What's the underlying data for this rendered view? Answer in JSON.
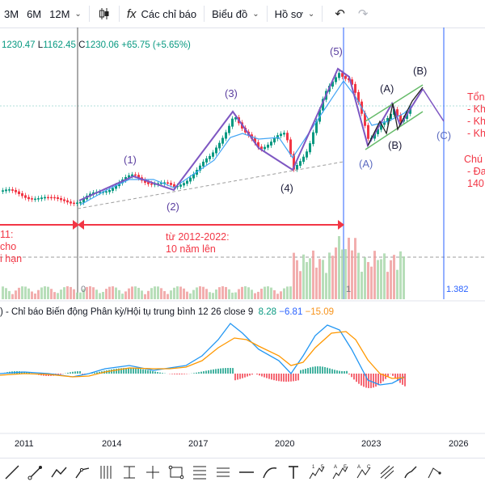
{
  "toolbar": {
    "ranges": [
      "3M",
      "6M",
      "12M"
    ],
    "indicators_label": "Các chỉ báo",
    "indicators_glyph": "fx",
    "chart_type_label": "Biểu đồ",
    "template_label": "Hồ sơ"
  },
  "ohlc": {
    "h_value": "1230.47",
    "l_label": "L",
    "l_value": "1162.45",
    "c_label": "C",
    "c_value": "1230.06",
    "change": "+65.75 (+5.65%)"
  },
  "waves": {
    "w1": "(1)",
    "w2": "(2)",
    "w3": "(3)",
    "w4": "(4)",
    "w5": "(5)",
    "a1": "(A)",
    "a2": "(A)",
    "b1": "(B)",
    "b2": "(B)",
    "c1": "(C)"
  },
  "annotations": {
    "left_note": "11:\ncho\ni hạn",
    "middle_note": "từ 2012-2022:\n10 năm lên",
    "right_title": "Tổn",
    "right_items": "- Kh\n- Kh\n- Kh",
    "right_title2": "Chú",
    "right_items2": "- Đa\n140"
  },
  "markers": {
    "zero": "0",
    "one": "1",
    "price_tag": "1.382"
  },
  "macd": {
    "name": ") - Chỉ báo Biến động Phân kỳ/Hội tụ trung bình 12 26 close 9",
    "histogram": "8.28",
    "macd": "−6.81",
    "signal": "−15.09"
  },
  "time_axis": [
    "2011",
    "2014",
    "2017",
    "2020",
    "2023",
    "2026"
  ],
  "colors": {
    "up": "#089981",
    "down": "#f23645",
    "wave_line": "#7e57c2",
    "macd": "#2196f3",
    "signal": "#ff9800",
    "annotation": "#f23645",
    "trend": "#2962ff"
  },
  "drawing_tools": [
    "line-tool-icon",
    "ray-tool-icon",
    "trend-angle-icon",
    "polyline-icon",
    "parallel-channel-icon",
    "pitchfork-icon",
    "cross-line-icon",
    "rectangle-icon",
    "fib-levels-icon",
    "gann-box-icon",
    "horizontal-line-icon",
    "curve-icon",
    "text-tool-icon",
    "elliott-impulse-icon",
    "elliott-correction-icon",
    "elliott-abc-icon",
    "projection-icon",
    "brush-icon",
    "more-tools-icon"
  ],
  "elliott_tool_labels": {
    "impulse": [
      "1",
      "5"
    ],
    "correction": [
      "A",
      "E"
    ],
    "abc": [
      "A",
      "C"
    ]
  }
}
